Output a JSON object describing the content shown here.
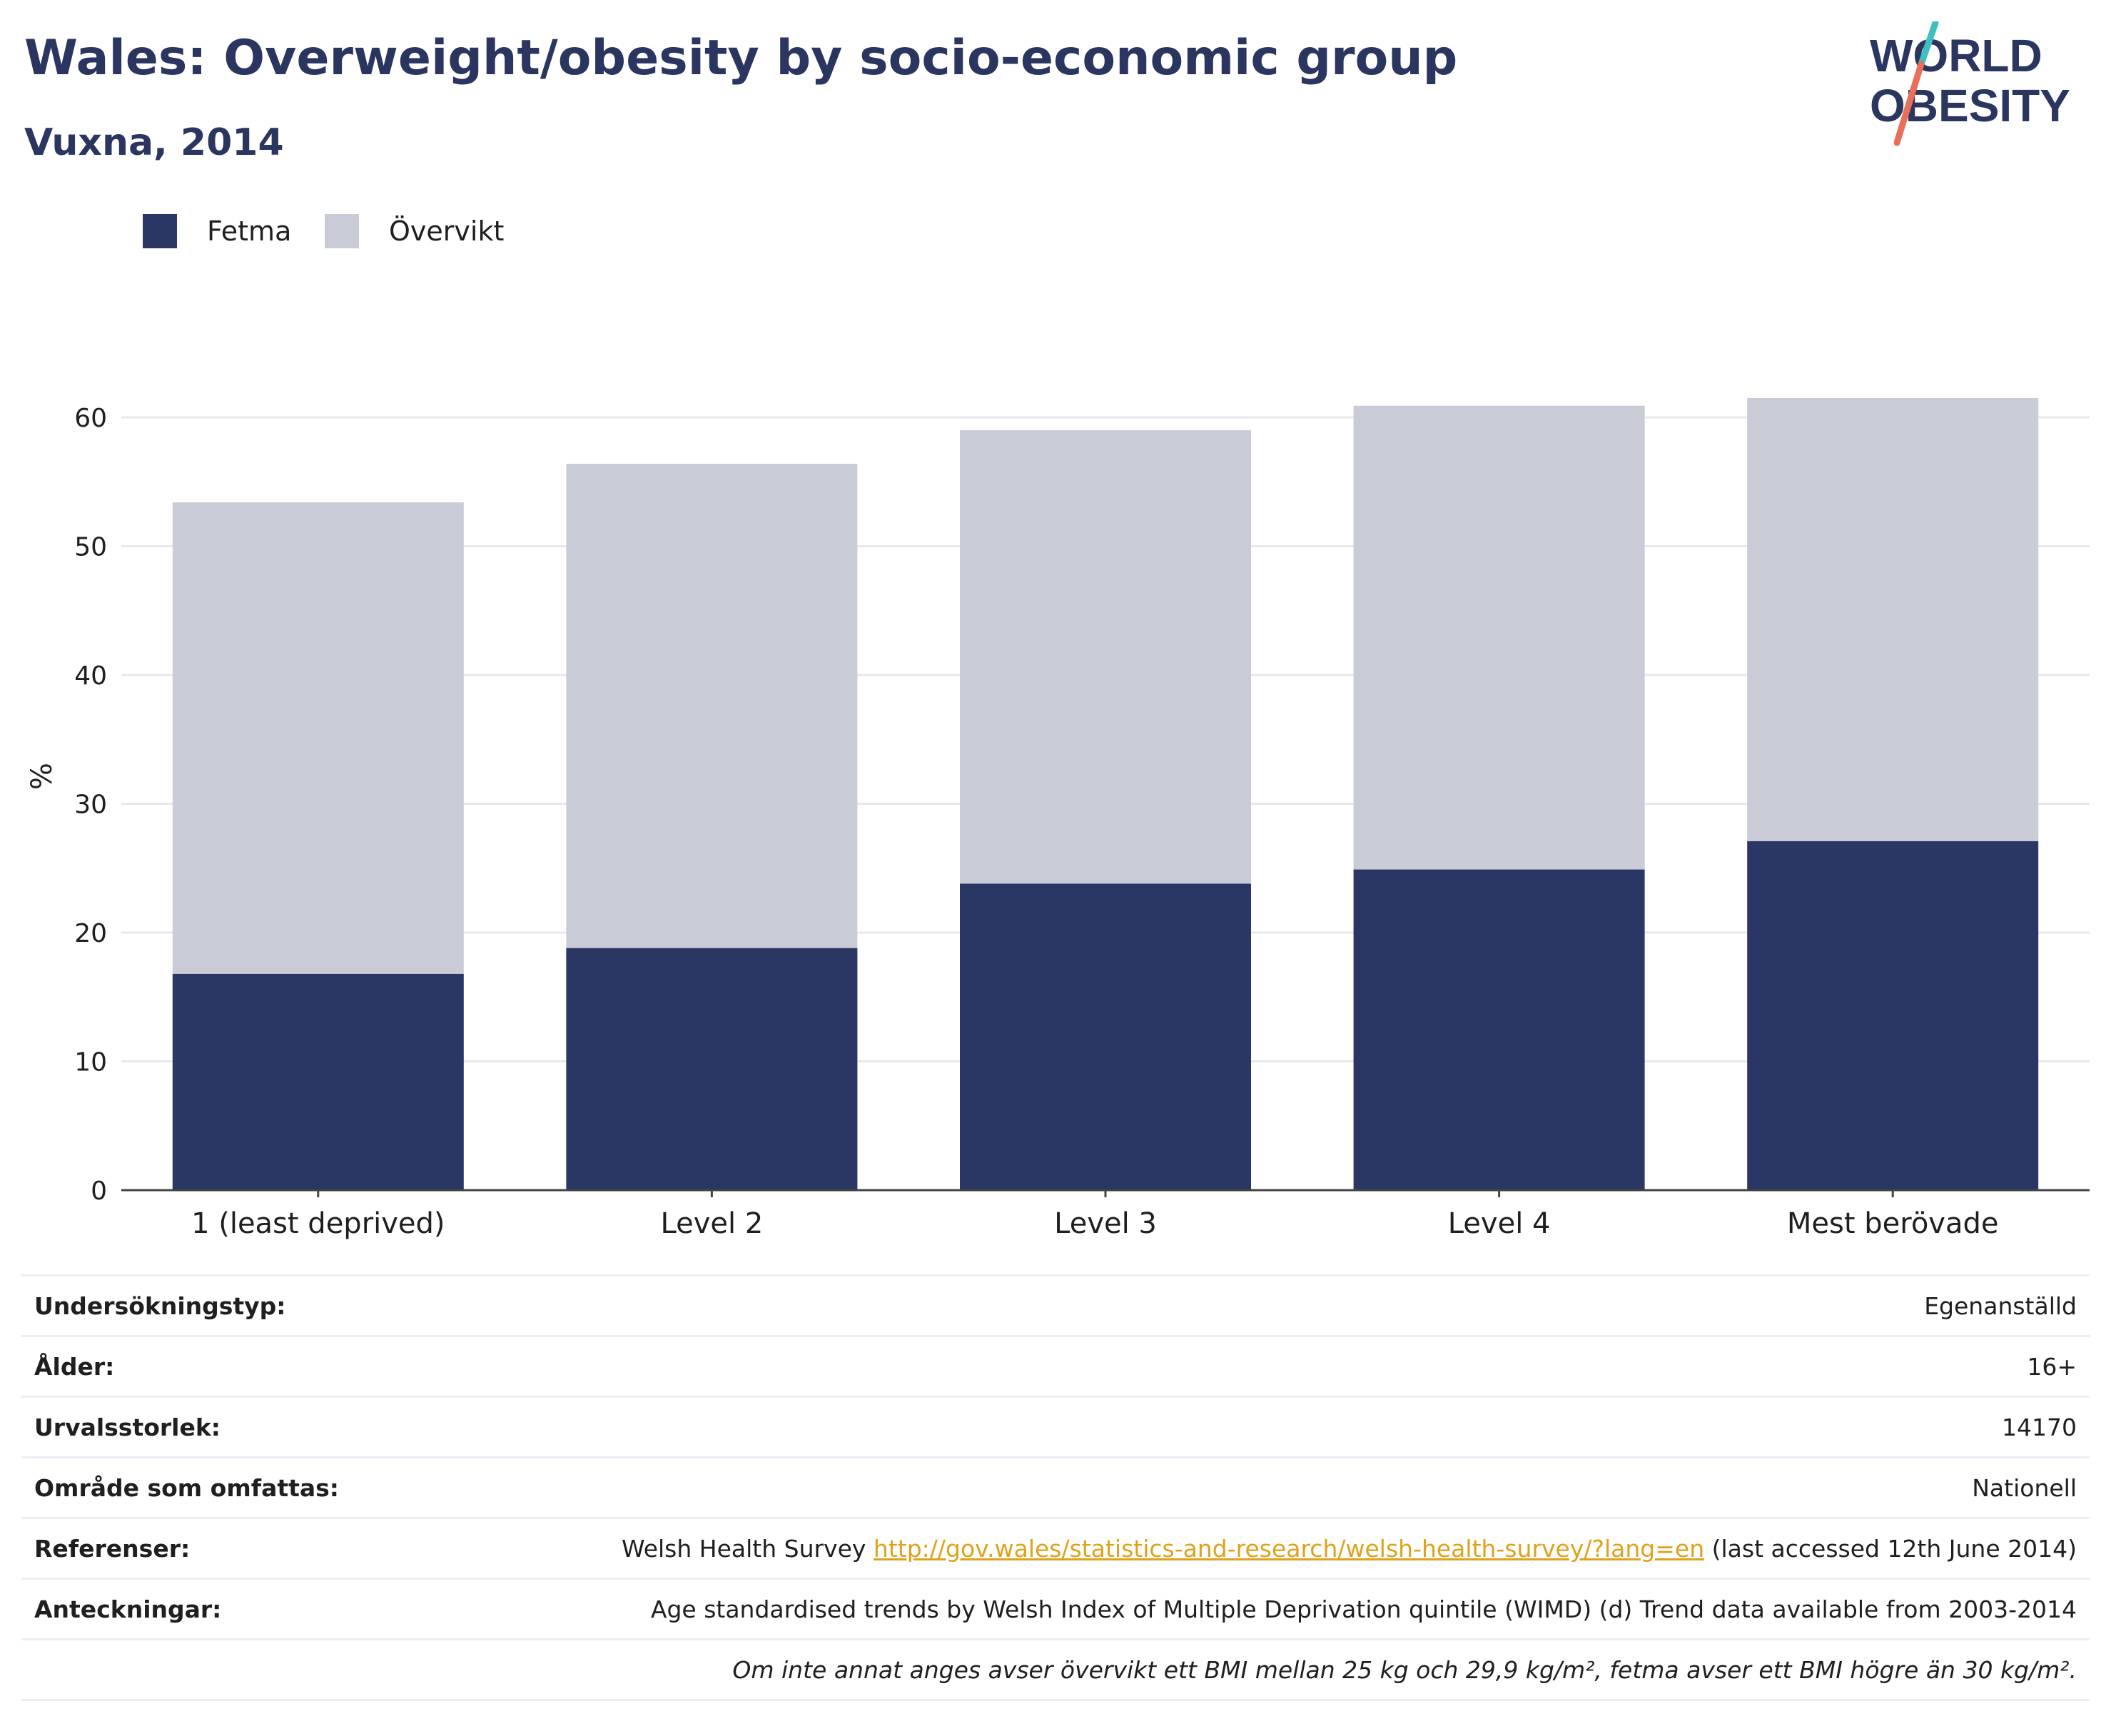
{
  "title": "Wales: Overweight/obesity by socio-economic group",
  "subtitle": "Vuxna, 2014",
  "logo": {
    "line1": "WORLD",
    "line2": "OBESITY"
  },
  "colors": {
    "fetma": "#2a3663",
    "overvikt": "#c9cbd7",
    "title": "#2a3560",
    "link": "#e0a21a"
  },
  "legend": [
    {
      "label": "Fetma",
      "color": "#2a3663"
    },
    {
      "label": "Övervikt",
      "color": "#c9cbd7"
    }
  ],
  "chart_data": {
    "type": "bar",
    "stacked": true,
    "categories": [
      "1 (least deprived)",
      "Level 2",
      "Level 3",
      "Level 4",
      "Mest berövade"
    ],
    "series": [
      {
        "name": "Fetma",
        "values": [
          16.8,
          18.8,
          23.8,
          24.9,
          27.1
        ]
      },
      {
        "name": "Övervikt",
        "values": [
          36.6,
          37.6,
          35.2,
          36.0,
          34.4
        ]
      }
    ],
    "ylabel": "%",
    "yticks": [
      0,
      10,
      20,
      30,
      40,
      50,
      60
    ],
    "ylim": [
      0,
      66
    ],
    "grid": true,
    "legend_position": "top-left"
  },
  "info": {
    "survey_type": {
      "label": "Undersökningstyp:",
      "value": "Egenanställd"
    },
    "age": {
      "label": "Ålder:",
      "value": "16+"
    },
    "sample_size": {
      "label": "Urvalsstorlek:",
      "value": "14170"
    },
    "area": {
      "label": "Område som omfattas:",
      "value": "Nationell"
    },
    "references": {
      "label": "Referenser:",
      "prefix": "Welsh Health Survey ",
      "link": "http://gov.wales/statistics-and-research/welsh-health-survey/?lang=en",
      "suffix": " (last accessed 12th June 2014)"
    },
    "notes": {
      "label": "Anteckningar:",
      "value": "Age standardised trends by Welsh Index of Multiple Deprivation quintile (WIMD) (d) Trend data available from 2003-2014"
    },
    "footnote": "Om inte annat anges avser övervikt ett BMI mellan 25 kg och 29,9 kg/m², fetma avser ett BMI högre än 30 kg/m²."
  }
}
